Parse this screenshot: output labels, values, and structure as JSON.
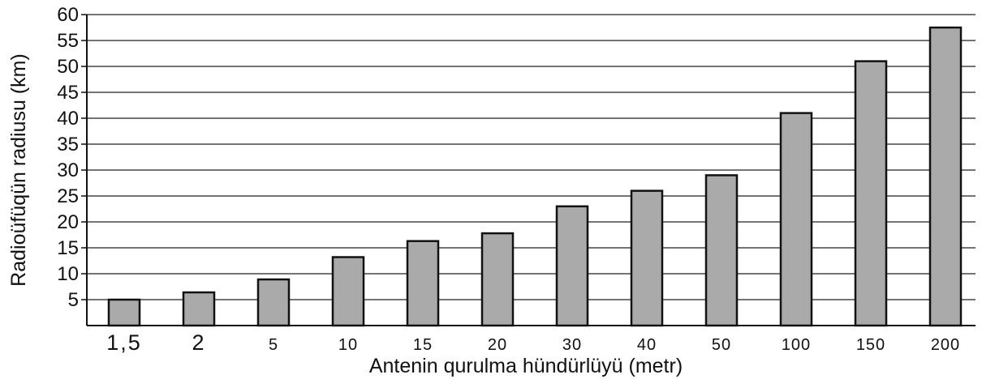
{
  "chart_data": {
    "type": "bar",
    "xlabel": "Antenin qurulma hündürlüyü (metr)",
    "ylabel": "Radioüfüqün radiusu (km)",
    "categories": [
      "1,5",
      "2",
      "5",
      "10",
      "15",
      "20",
      "30",
      "40",
      "50",
      "100",
      "150",
      "200"
    ],
    "values": [
      5,
      6.4,
      8.9,
      13.2,
      16.3,
      17.8,
      23,
      26,
      29,
      41,
      51,
      57.5
    ],
    "ylim": [
      0,
      60
    ],
    "yticks": [
      5,
      10,
      15,
      20,
      25,
      30,
      35,
      40,
      45,
      50,
      55,
      60
    ],
    "grid": true,
    "bar_color": "#aaaaaa",
    "bar_edge_color": "#111111"
  }
}
